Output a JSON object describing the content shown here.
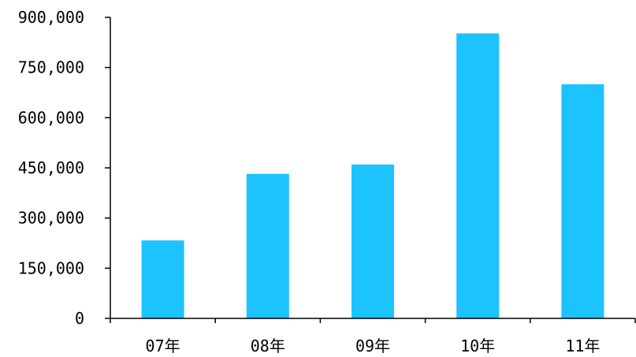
{
  "chart_data": {
    "type": "bar",
    "categories": [
      "07年",
      "08年",
      "09年",
      "10年",
      "11年"
    ],
    "values": [
      233000,
      432000,
      460000,
      852000,
      700000
    ],
    "ylim": [
      0,
      900000
    ],
    "yticks": [
      "0",
      "150,000",
      "300,000",
      "450,000",
      "600,000",
      "750,000",
      "900,000"
    ],
    "ytick_values": [
      0,
      150000,
      300000,
      450000,
      600000,
      750000,
      900000
    ],
    "title": "",
    "xlabel": "",
    "ylabel": "",
    "grid": false,
    "legend": "none",
    "bar_color": "#1CC3FF",
    "axis_color": "#000000"
  }
}
